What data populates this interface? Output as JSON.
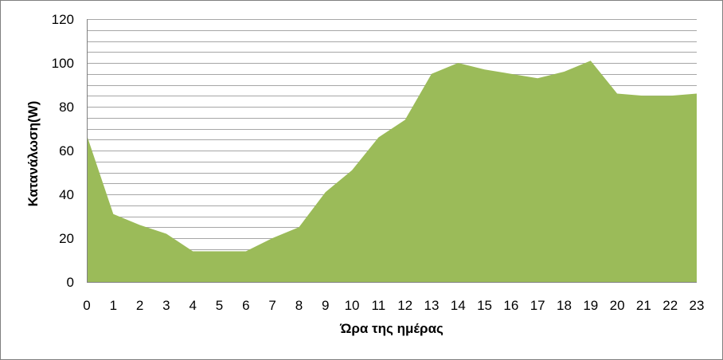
{
  "chart_data": {
    "type": "area",
    "title": "",
    "xlabel": "Ώρα της ημέρας",
    "ylabel": "Κατανάλωση(W)",
    "x": [
      0,
      1,
      2,
      3,
      4,
      5,
      6,
      7,
      8,
      9,
      10,
      11,
      12,
      13,
      14,
      15,
      16,
      17,
      18,
      19,
      20,
      21,
      22,
      23
    ],
    "x_tick_labels": [
      "0",
      "1",
      "2",
      "3",
      "4",
      "5",
      "6",
      "7",
      "8",
      "9",
      "10",
      "11",
      "12",
      "13",
      "14",
      "15",
      "16",
      "17",
      "18",
      "19",
      "20",
      "21",
      "22",
      "23"
    ],
    "values": [
      67,
      31,
      26,
      22,
      14,
      14,
      14,
      20,
      25,
      41,
      51,
      66,
      74,
      95,
      100,
      97,
      95,
      93,
      96,
      101,
      86,
      85,
      85,
      86
    ],
    "ylim": [
      0,
      120
    ],
    "y_ticks": [
      0,
      20,
      40,
      60,
      80,
      100,
      120
    ],
    "y_tick_labels": [
      "0",
      "20",
      "40",
      "60",
      "80",
      "100",
      "120"
    ],
    "minor_grid_step": 5,
    "grid": true,
    "legend": "none",
    "fill_color": "#9bbb59",
    "grid_color": "#a6a6a6"
  }
}
